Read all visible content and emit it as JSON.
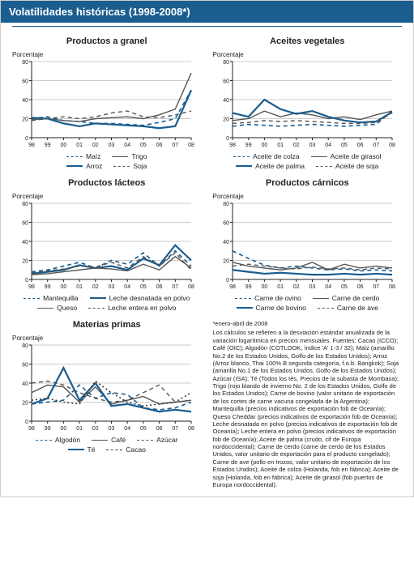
{
  "title": "Volatilidades históricas (1998-2008*)",
  "chart_common": {
    "ylabel": "Porcentaje",
    "ylim": [
      0,
      80
    ],
    "ytick_step": 20,
    "xcats": [
      "98",
      "99",
      "00",
      "01",
      "02",
      "03",
      "04",
      "05",
      "06",
      "07",
      "08"
    ],
    "grid_color": "#999999",
    "axis_color": "#222222",
    "axis_fontsize": 7,
    "label_fontsize": 8,
    "title_fontsize": 11,
    "background_color": "#ffffff"
  },
  "palette": {
    "blue": "#1a5d8f",
    "gray": "#555555"
  },
  "charts": [
    {
      "id": "bulk",
      "title": "Productos a granel",
      "series": [
        {
          "name": "Maíz",
          "color": "#1a5d8f",
          "dash": "5,4",
          "width": 1.6,
          "values": [
            20,
            22,
            18,
            17,
            15,
            15,
            14,
            13,
            16,
            20,
            50
          ]
        },
        {
          "name": "Trigo",
          "color": "#555555",
          "dash": "",
          "width": 1.4,
          "values": [
            19,
            20,
            18,
            17,
            20,
            21,
            22,
            20,
            24,
            30,
            68
          ]
        },
        {
          "name": "Arroz",
          "color": "#1a5d8f",
          "dash": "",
          "width": 2.2,
          "values": [
            21,
            20,
            15,
            12,
            15,
            14,
            13,
            12,
            10,
            12,
            50
          ]
        },
        {
          "name": "Soja",
          "color": "#555555",
          "dash": "5,4",
          "width": 1.4,
          "values": [
            18,
            20,
            22,
            20,
            22,
            26,
            28,
            22,
            21,
            24,
            28
          ]
        }
      ],
      "legend_layout": [
        [
          "Maíz",
          "Trigo"
        ],
        [
          "Arroz",
          "Soja"
        ]
      ]
    },
    {
      "id": "veg",
      "title": "Aceites vegetales",
      "series": [
        {
          "name": "Aceite de colza",
          "color": "#1a5d8f",
          "dash": "5,4",
          "width": 1.6,
          "values": [
            12,
            14,
            13,
            12,
            13,
            14,
            13,
            12,
            13,
            14,
            28
          ]
        },
        {
          "name": "Aceite de girasol",
          "color": "#555555",
          "dash": "",
          "width": 1.4,
          "values": [
            18,
            20,
            28,
            22,
            26,
            24,
            20,
            22,
            19,
            24,
            28
          ]
        },
        {
          "name": "Aceite de palma",
          "color": "#1a5d8f",
          "dash": "",
          "width": 2.2,
          "values": [
            26,
            22,
            40,
            30,
            25,
            28,
            22,
            18,
            16,
            17,
            27
          ]
        },
        {
          "name": "Aceite de soja",
          "color": "#555555",
          "dash": "5,4",
          "width": 1.4,
          "values": [
            15,
            16,
            18,
            17,
            18,
            17,
            16,
            15,
            15,
            16,
            26
          ]
        }
      ],
      "legend_layout": [
        [
          "Aceite de colza",
          "Aceite de girasol"
        ],
        [
          "Aceite de palma",
          "Aceite de soja"
        ]
      ]
    },
    {
      "id": "dairy",
      "title": "Productos lácteos",
      "series": [
        {
          "name": "Mantequilla",
          "color": "#1a5d8f",
          "dash": "5,4",
          "width": 1.6,
          "values": [
            8,
            10,
            14,
            18,
            12,
            20,
            16,
            28,
            14,
            30,
            14
          ]
        },
        {
          "name": "Leche desnatada en polvo",
          "color": "#1a5d8f",
          "dash": "",
          "width": 2.2,
          "values": [
            6,
            8,
            10,
            15,
            12,
            14,
            10,
            22,
            15,
            36,
            20
          ]
        },
        {
          "name": "Queso",
          "color": "#555555",
          "dash": "",
          "width": 1.4,
          "values": [
            5,
            6,
            8,
            10,
            12,
            11,
            9,
            16,
            10,
            24,
            12
          ]
        },
        {
          "name": "Leche entera en polvo",
          "color": "#555555",
          "dash": "5,4",
          "width": 1.4,
          "values": [
            7,
            9,
            11,
            14,
            13,
            18,
            12,
            24,
            14,
            28,
            10
          ]
        }
      ],
      "legend_layout": [
        [
          "Mantequilla",
          "Leche desnatada en polvo"
        ],
        [
          "Queso",
          "Leche entera en polvo"
        ]
      ]
    },
    {
      "id": "meat",
      "title": "Productos cárnicos",
      "series": [
        {
          "name": "Carne de ovino",
          "color": "#1a5d8f",
          "dash": "5,4",
          "width": 1.6,
          "values": [
            30,
            22,
            15,
            12,
            14,
            12,
            10,
            11,
            9,
            10,
            9
          ]
        },
        {
          "name": "Carne de cerdo",
          "color": "#555555",
          "dash": "",
          "width": 1.4,
          "values": [
            18,
            14,
            12,
            10,
            12,
            18,
            10,
            16,
            12,
            14,
            12
          ]
        },
        {
          "name": "Carne de bovino",
          "color": "#1a5d8f",
          "dash": "",
          "width": 2.2,
          "values": [
            10,
            8,
            6,
            7,
            6,
            5,
            5,
            6,
            5,
            6,
            5
          ]
        },
        {
          "name": "Carne de ave",
          "color": "#555555",
          "dash": "5,4",
          "width": 1.4,
          "values": [
            14,
            16,
            14,
            12,
            11,
            13,
            11,
            12,
            10,
            12,
            11
          ]
        }
      ],
      "legend_layout": [
        [
          "Carne de ovino",
          "Carne de cerdo"
        ],
        [
          "Carne de bovino",
          "Carne de ave"
        ]
      ]
    },
    {
      "id": "raw",
      "title": "Materias primas",
      "series": [
        {
          "name": "Algodón",
          "color": "#1a5d8f",
          "dash": "5,4",
          "width": 1.6,
          "values": [
            18,
            20,
            22,
            38,
            24,
            30,
            28,
            14,
            12,
            14,
            20
          ]
        },
        {
          "name": "Café",
          "color": "#555555",
          "dash": "",
          "width": 1.4,
          "values": [
            30,
            38,
            36,
            20,
            36,
            18,
            22,
            26,
            18,
            20,
            22
          ]
        },
        {
          "name": "Azúcar",
          "color": "#555555",
          "dash": "5,4",
          "width": 1.4,
          "values": [
            40,
            42,
            38,
            30,
            24,
            20,
            22,
            30,
            38,
            20,
            22
          ]
        },
        {
          "name": "Té",
          "color": "#1a5d8f",
          "dash": "",
          "width": 2.2,
          "values": [
            18,
            24,
            56,
            22,
            40,
            16,
            18,
            14,
            10,
            12,
            10
          ]
        },
        {
          "name": "Cacao",
          "color": "#3a3a3a",
          "dash": "2,3",
          "width": 1.6,
          "values": [
            22,
            24,
            20,
            18,
            42,
            30,
            20,
            16,
            18,
            20,
            30
          ]
        }
      ],
      "legend_layout": [
        [
          "Algodón",
          "Café",
          "Azúcar"
        ],
        [
          "Té",
          "Cacao"
        ]
      ]
    }
  ],
  "footnote": {
    "first": "*enero-abril de 2008",
    "body": "Los cálculos se refieren a la desviación estándar anualizada de la variación logarítmica en precios mensuales.\nFuentes: Cacao (ICCO); Café (OIC); Algodón (COTLOOK, índice 'A' 1-3 / 32); Maíz (amarillo No.2 de los Estados Unidos, Golfo de los Estados Unidos); Arroz (Arroz blanco, Thai 100% B segunda categoría, f.o.b. Bangkok); Soja (amarilla No.1 de los Estados Unidos, Golfo de los Estados Unidos); Azúcar (ISA); Té (Todos los tés, Precios de la subasta de Mombasa); Trigo (rojo blando de invierno No. 2 de los Estados Unidos, Golfo de los Estados Unidos); Carne de bovino (valor unitario de exportación de los cortes de carne vacuna congelada de la Argentina); Mantequilla (precios indicativos de exportación fob de Oceanía); Queso Cheddar (precios indicativos de exportación fob de Oceanía); Leche desnatada en polvo (precios indicativos de exportación fob de Oceanía); Leche entera en polvo (precios indicativos de exportación fob de Oceanía); Aceite de palma (crudo, cif de Europa nordoccidental); Carne de cerdo (carne de cerdo de los Estados Unidos, valor unitario de exportación para el producto congelado); Carne de ave (pollo en trozos, valor unitario de exportación de los Estados Unidos); Aceite de colza (Holanda, fob en fábrica); Aceite de soja (Holanda, fob en fábrica); Aceite de girasol (fob puertos de Europa nordoccidental)."
  }
}
